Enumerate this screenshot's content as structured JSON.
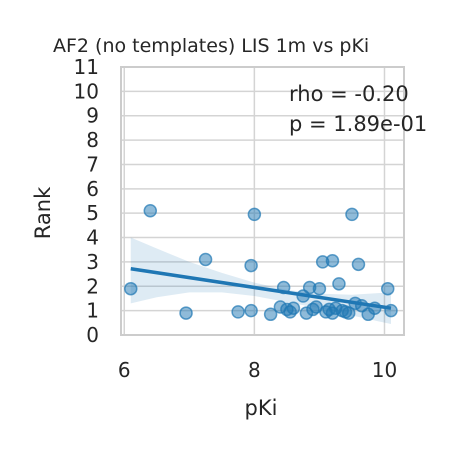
{
  "chart_data": {
    "type": "scatter",
    "title": "AF2 (no templates) LIS 1m vs pKi",
    "xlabel": "pKi",
    "ylabel": "Rank",
    "xlim": [
      5.95,
      10.3
    ],
    "ylim": [
      0,
      11
    ],
    "xticks": [
      6,
      8,
      10
    ],
    "yticks": [
      0,
      1,
      2,
      3,
      4,
      5,
      6,
      7,
      8,
      9,
      10,
      11
    ],
    "grid": true,
    "annotations": [
      "rho = -0.20",
      "p = 1.89e-01"
    ],
    "points": [
      {
        "x": 6.1,
        "y": 1.9
      },
      {
        "x": 6.4,
        "y": 5.1
      },
      {
        "x": 6.95,
        "y": 0.9
      },
      {
        "x": 7.25,
        "y": 3.1
      },
      {
        "x": 7.75,
        "y": 0.95
      },
      {
        "x": 7.95,
        "y": 2.85
      },
      {
        "x": 7.95,
        "y": 1.0
      },
      {
        "x": 8.0,
        "y": 4.95
      },
      {
        "x": 8.25,
        "y": 0.85
      },
      {
        "x": 8.4,
        "y": 1.15
      },
      {
        "x": 8.45,
        "y": 1.95
      },
      {
        "x": 8.5,
        "y": 1.05
      },
      {
        "x": 8.55,
        "y": 0.95
      },
      {
        "x": 8.6,
        "y": 1.1
      },
      {
        "x": 8.75,
        "y": 1.6
      },
      {
        "x": 8.8,
        "y": 0.9
      },
      {
        "x": 8.85,
        "y": 1.95
      },
      {
        "x": 8.9,
        "y": 1.05
      },
      {
        "x": 8.95,
        "y": 1.15
      },
      {
        "x": 9.0,
        "y": 1.9
      },
      {
        "x": 9.05,
        "y": 3.0
      },
      {
        "x": 9.1,
        "y": 0.95
      },
      {
        "x": 9.15,
        "y": 1.05
      },
      {
        "x": 9.2,
        "y": 0.9
      },
      {
        "x": 9.2,
        "y": 3.05
      },
      {
        "x": 9.25,
        "y": 1.1
      },
      {
        "x": 9.3,
        "y": 2.1
      },
      {
        "x": 9.35,
        "y": 1.0
      },
      {
        "x": 9.4,
        "y": 0.95
      },
      {
        "x": 9.45,
        "y": 0.9
      },
      {
        "x": 9.5,
        "y": 4.95
      },
      {
        "x": 9.55,
        "y": 1.3
      },
      {
        "x": 9.6,
        "y": 2.9
      },
      {
        "x": 9.65,
        "y": 1.2
      },
      {
        "x": 9.75,
        "y": 0.85
      },
      {
        "x": 9.85,
        "y": 1.1
      },
      {
        "x": 10.05,
        "y": 1.9
      },
      {
        "x": 10.1,
        "y": 1.0
      }
    ],
    "regression": {
      "x": [
        6.1,
        10.1
      ],
      "y": [
        2.72,
        1.1
      ]
    },
    "confidence_band": {
      "x": [
        6.1,
        6.5,
        7.0,
        7.5,
        8.0,
        8.5,
        9.0,
        9.5,
        10.1
      ],
      "upper": [
        4.0,
        3.55,
        3.0,
        2.55,
        2.15,
        1.85,
        1.7,
        1.65,
        1.75
      ],
      "lower": [
        1.3,
        1.55,
        1.75,
        1.75,
        1.6,
        1.35,
        1.1,
        0.8,
        0.45
      ]
    },
    "colors": {
      "points": "#1f77b4",
      "line": "#1f77b4",
      "band": "#1f77b4",
      "grid": "#d4d4d4",
      "spine": "#cccccc"
    }
  }
}
